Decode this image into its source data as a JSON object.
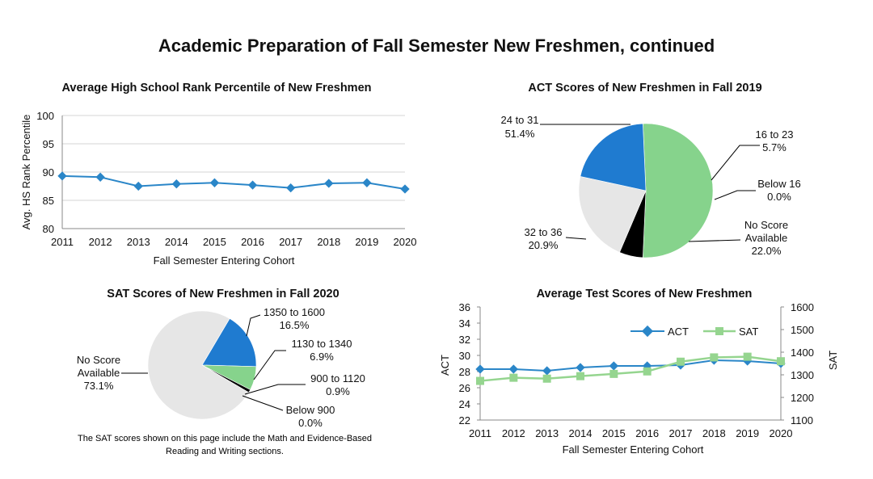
{
  "page_title": "Academic Preparation of Fall Semester New Freshmen, continued",
  "footnote": {
    "line1": "The SAT scores shown on this page include the Math and Evidence-Based",
    "line2": "Reading and Writing sections."
  },
  "colors": {
    "blue": "#1f7bd0",
    "green": "#86d38c",
    "gray": "#e6e6e6",
    "black": "#000000",
    "line_blue": "#2a86c8",
    "line_green": "#95d58f"
  },
  "chart_data": [
    {
      "id": "hs-rank",
      "type": "line",
      "title": "Average High School Rank Percentile of New Freshmen",
      "xlabel": "Fall Semester Entering Cohort",
      "ylabel": "Avg. HS Rank Percentile",
      "ylim": [
        80,
        100
      ],
      "yticks": [
        "80",
        "85",
        "90",
        "95",
        "100"
      ],
      "categories": [
        "2011",
        "2012",
        "2013",
        "2014",
        "2015",
        "2016",
        "2017",
        "2018",
        "2019",
        "2020"
      ],
      "values": [
        89.3,
        89.1,
        87.5,
        87.9,
        88.1,
        87.7,
        87.2,
        88.0,
        88.1,
        87.0
      ]
    },
    {
      "id": "act-pie",
      "type": "pie",
      "title": "ACT Scores of New Freshmen in Fall 2019",
      "slices": [
        {
          "label": "24 to 31",
          "pct_label": "51.4%",
          "value": 51.4,
          "color": "green"
        },
        {
          "label": "16 to 23",
          "pct_label": "5.7%",
          "value": 5.7,
          "color": "black"
        },
        {
          "label": "Below 16",
          "pct_label": "0.0%",
          "value": 0.0,
          "color": "black"
        },
        {
          "label": "No Score Available",
          "label_lines": [
            "No Score",
            "Available"
          ],
          "pct_label": "22.0%",
          "value": 22.0,
          "color": "gray"
        },
        {
          "label": "32 to 36",
          "pct_label": "20.9%",
          "value": 20.9,
          "color": "blue"
        }
      ]
    },
    {
      "id": "sat-pie",
      "type": "pie",
      "title": "SAT Scores of New Freshmen in Fall 2020",
      "slices": [
        {
          "label": "1350 to 1600",
          "pct_label": "16.5%",
          "value": 16.5,
          "color": "blue"
        },
        {
          "label": "1130 to 1340",
          "pct_label": "6.9%",
          "value": 6.9,
          "color": "green"
        },
        {
          "label": "900 to 1120",
          "pct_label": "0.9%",
          "value": 0.9,
          "color": "black"
        },
        {
          "label": "Below 900",
          "pct_label": "0.0%",
          "value": 0.0,
          "color": "black"
        },
        {
          "label": "No Score Available",
          "label_lines": [
            "No Score",
            "Available"
          ],
          "pct_label": "73.1%",
          "value": 73.1,
          "color": "gray"
        }
      ]
    },
    {
      "id": "test-scores",
      "type": "line",
      "title": "Average Test Scores of New Freshmen",
      "xlabel": "Fall Semester Entering Cohort",
      "ylabel_left": "ACT",
      "ylabel_right": "SAT",
      "ylim_left": [
        22,
        36
      ],
      "ylim_right": [
        1100,
        1600
      ],
      "yticks_left": [
        "22",
        "24",
        "26",
        "28",
        "30",
        "32",
        "34",
        "36"
      ],
      "yticks_right": [
        "1100",
        "1200",
        "1300",
        "1400",
        "1500",
        "1600"
      ],
      "categories": [
        "2011",
        "2012",
        "2013",
        "2014",
        "2015",
        "2016",
        "2017",
        "2018",
        "2019",
        "2020"
      ],
      "legend": [
        "ACT",
        "SAT"
      ],
      "series": [
        {
          "name": "ACT",
          "axis": "left",
          "values": [
            28.3,
            28.3,
            28.1,
            28.5,
            28.7,
            28.7,
            28.8,
            29.4,
            29.3,
            29.0
          ]
        },
        {
          "name": "SAT",
          "axis": "right",
          "values": [
            1273,
            1287,
            1283,
            1294,
            1304,
            1315,
            1358,
            1377,
            1380,
            1360
          ]
        }
      ]
    }
  ]
}
